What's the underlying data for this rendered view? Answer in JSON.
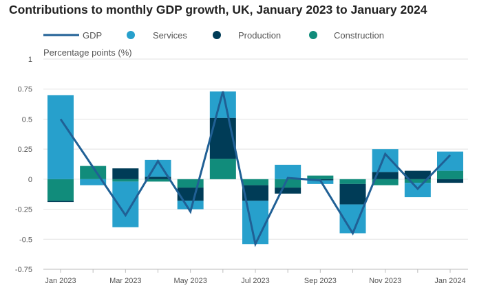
{
  "chart_data": {
    "type": "bar",
    "stacked": true,
    "title": "Contributions to monthly GDP growth, UK, January 2023 to January 2024",
    "ylabel": "Percentage points (%)",
    "ylim": [
      -0.75,
      1
    ],
    "yticks": [
      -0.75,
      -0.5,
      -0.25,
      0,
      0.25,
      0.5,
      0.75,
      1
    ],
    "ytick_labels": [
      "-0.75",
      "-0.5",
      "-0.25",
      "0",
      "0.25",
      "0.5",
      "0.75",
      "1"
    ],
    "grid": true,
    "legend_position": "top",
    "categories": [
      "Jan 2023",
      "Feb 2023",
      "Mar 2023",
      "Apr 2023",
      "May 2023",
      "Jun 2023",
      "Jul 2023",
      "Aug 2023",
      "Sep 2023",
      "Oct 2023",
      "Nov 2023",
      "Dec 2023",
      "Jan 2024"
    ],
    "xtick_labels": [
      "Jan 2023",
      "",
      "Mar 2023",
      "",
      "May 2023",
      "",
      "Jul 2023",
      "",
      "Sep 2023",
      "",
      "Nov 2023",
      "",
      "Jan 2024"
    ],
    "series": [
      {
        "name": "Services",
        "kind": "bar",
        "color": "#27a0cc",
        "values": [
          0.7,
          -0.05,
          -0.38,
          0.14,
          -0.07,
          0.22,
          -0.36,
          0.12,
          -0.03,
          -0.24,
          0.19,
          -0.12,
          0.16
        ]
      },
      {
        "name": "Production",
        "kind": "bar",
        "color": "#003c57",
        "values": [
          -0.01,
          0.0,
          0.09,
          0.02,
          -0.11,
          0.34,
          -0.13,
          -0.05,
          -0.01,
          -0.17,
          0.06,
          0.07,
          -0.03
        ]
      },
      {
        "name": "Construction",
        "kind": "bar",
        "color": "#118c7b",
        "values": [
          -0.18,
          0.11,
          -0.02,
          -0.02,
          -0.07,
          0.17,
          -0.05,
          -0.07,
          0.03,
          -0.04,
          -0.05,
          -0.03,
          0.07
        ]
      },
      {
        "name": "GDP",
        "kind": "line",
        "color": "#206095",
        "values": [
          0.5,
          0.1,
          -0.3,
          0.15,
          -0.27,
          0.73,
          -0.54,
          0.01,
          -0.01,
          -0.45,
          0.21,
          -0.08,
          0.2
        ]
      }
    ]
  }
}
